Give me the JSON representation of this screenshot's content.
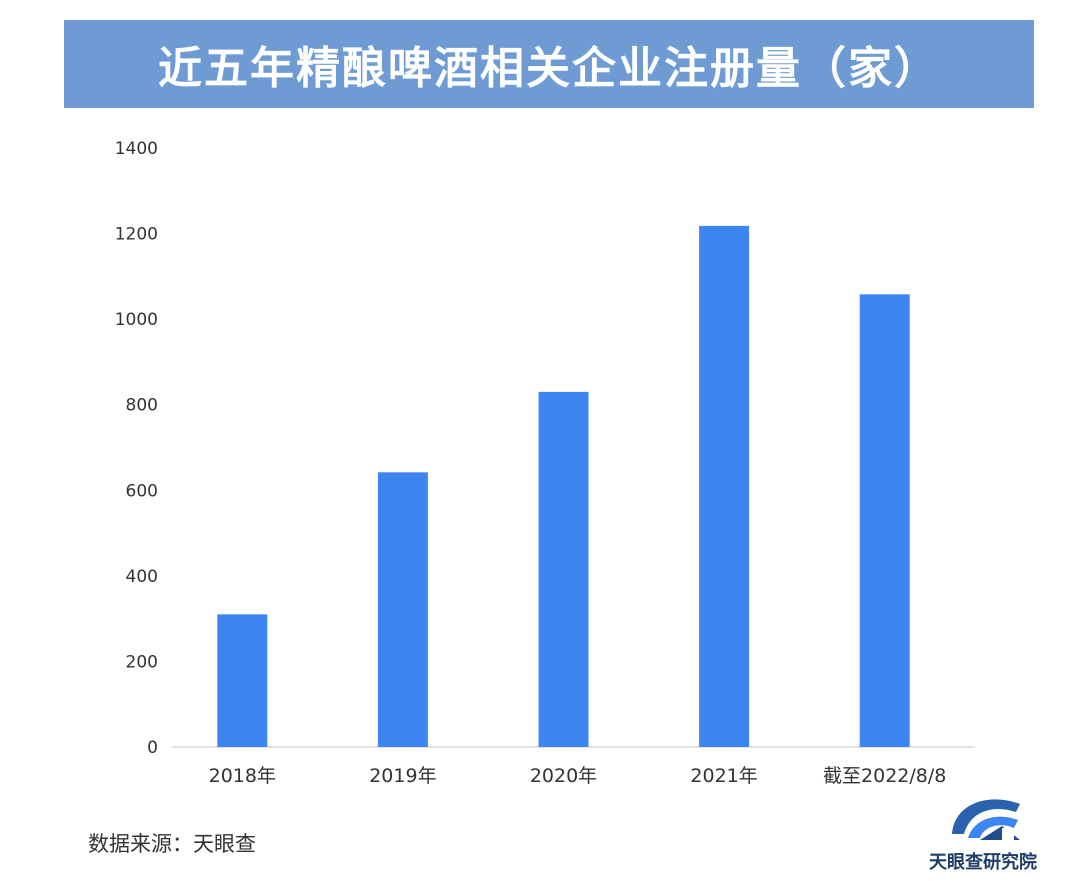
{
  "chart_data": {
    "type": "bar",
    "title": "近五年精酿啤酒相关企业注册量（家）",
    "categories": [
      "2018年",
      "2019年",
      "2020年",
      "2021年",
      "截至2022/8/8"
    ],
    "values": [
      310,
      642,
      830,
      1218,
      1058
    ],
    "ylim": [
      0,
      1400
    ],
    "yticks": [
      0,
      200,
      400,
      600,
      800,
      1000,
      1200,
      1400
    ],
    "xlabel": "",
    "ylabel": "",
    "grid": false,
    "legend": "none",
    "bar_color": "#3d86f2",
    "axis_color": "#d9d9d9"
  },
  "source": "数据来源：天眼查",
  "logo": {
    "icon": "tianyancha-logo-icon",
    "text": "天眼查研究院",
    "color": "#1f4e8c"
  },
  "colors": {
    "title_banner": "#6e9bd3",
    "title_text": "#ffffff"
  }
}
